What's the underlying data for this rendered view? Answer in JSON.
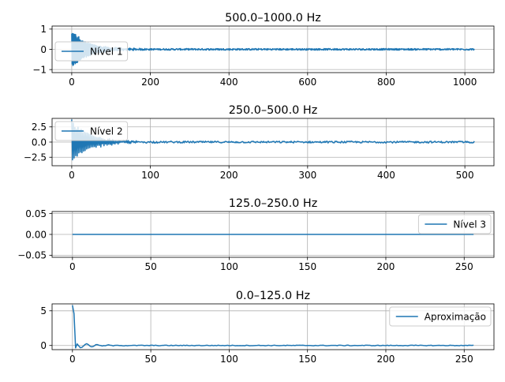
{
  "chart_data": [
    {
      "type": "line",
      "title": "500.0–1000.0 Hz",
      "xlabel": "",
      "ylabel": "",
      "xlim": [
        -50,
        1074
      ],
      "ylim": [
        -1.15,
        1.15
      ],
      "xticks": [
        0,
        200,
        400,
        600,
        800,
        1000
      ],
      "yticks": [
        -1,
        0,
        1
      ],
      "grid": true,
      "legend": "upper left",
      "series": [
        {
          "name": "Nível 1",
          "color": "#1f77b4",
          "signal": {
            "n": 1024,
            "kind": "decaying_oscillation",
            "peak": 1.0,
            "tail_noise": 0.04,
            "decay_samples": 40
          }
        }
      ]
    },
    {
      "type": "line",
      "title": "250.0–500.0 Hz",
      "xlabel": "",
      "ylabel": "",
      "xlim": [
        -25,
        537
      ],
      "ylim": [
        -3.9,
        3.9
      ],
      "xticks": [
        0,
        100,
        200,
        300,
        400,
        500
      ],
      "yticks": [
        -2.5,
        0.0,
        2.5
      ],
      "grid": true,
      "legend": "upper left",
      "series": [
        {
          "name": "Nível 2",
          "color": "#1f77b4",
          "signal": {
            "n": 512,
            "kind": "decaying_oscillation",
            "peak": 3.7,
            "tail_noise": 0.15,
            "decay_samples": 22
          }
        }
      ]
    },
    {
      "type": "line",
      "title": "125.0–250.0 Hz",
      "xlabel": "",
      "ylabel": "",
      "xlim": [
        -13,
        269
      ],
      "ylim": [
        -0.055,
        0.055
      ],
      "xticks": [
        0,
        50,
        100,
        150,
        200,
        250
      ],
      "yticks": [
        -0.05,
        0.0,
        0.05
      ],
      "grid": true,
      "legend": "upper right",
      "series": [
        {
          "name": "Nível 3",
          "color": "#1f77b4",
          "signal": {
            "n": 256,
            "kind": "zero"
          }
        }
      ]
    },
    {
      "type": "line",
      "title": "0.0–125.0 Hz",
      "xlabel": "",
      "ylabel": "",
      "xlim": [
        -13,
        269
      ],
      "ylim": [
        -0.6,
        6.0
      ],
      "xticks": [
        0,
        50,
        100,
        150,
        200,
        250
      ],
      "yticks": [
        0,
        5
      ],
      "grid": true,
      "legend": "upper right",
      "series": [
        {
          "name": "Aproximação",
          "color": "#1f77b4",
          "signal": {
            "n": 256,
            "kind": "drop_ringing",
            "start": 5.8,
            "ring": 0.45,
            "tail_noise": 0.05
          }
        }
      ]
    }
  ]
}
